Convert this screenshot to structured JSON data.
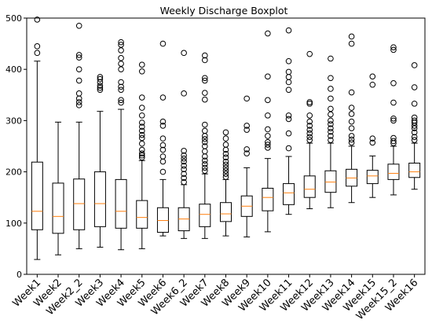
{
  "chart_data": {
    "type": "boxplot",
    "title": "Weekly Discharge Boxplot",
    "xlabel": "",
    "ylabel": "",
    "ylim": [
      0,
      500
    ],
    "yticks": [
      0,
      100,
      200,
      300,
      400,
      500
    ],
    "grid": false,
    "colors": {
      "box": "#000000",
      "median": "#ff7f0e",
      "flier": "#000000"
    },
    "categories": [
      "Week1",
      "Week2",
      "Week2_2",
      "Week3",
      "Week4",
      "Week5",
      "Week6",
      "Week6_2",
      "Week7",
      "Week8",
      "Week9",
      "Week10",
      "Week11",
      "Week12",
      "Week13",
      "Week14",
      "Week15",
      "Week15_2",
      "Week16"
    ],
    "boxes": [
      {
        "whislo": 29,
        "q1": 87,
        "med": 123,
        "q3": 219,
        "whishi": 416,
        "fliers": [
          432,
          445,
          497
        ]
      },
      {
        "whislo": 38,
        "q1": 80,
        "med": 113,
        "q3": 178,
        "whishi": 297,
        "fliers": []
      },
      {
        "whislo": 50,
        "q1": 87,
        "med": 138,
        "q3": 186,
        "whishi": 297,
        "fliers": [
          330,
          336,
          343,
          353,
          378,
          400,
          423,
          428,
          485
        ]
      },
      {
        "whislo": 53,
        "q1": 93,
        "med": 138,
        "q3": 200,
        "whishi": 318,
        "fliers": [
          360,
          364,
          368,
          375,
          381,
          385
        ]
      },
      {
        "whislo": 48,
        "q1": 90,
        "med": 123,
        "q3": 185,
        "whishi": 322,
        "fliers": [
          335,
          340,
          360,
          366,
          375,
          400,
          411,
          422,
          437,
          448,
          453
        ]
      },
      {
        "whislo": 50,
        "q1": 90,
        "med": 111,
        "q3": 144,
        "whishi": 222,
        "fliers": [
          228,
          232,
          236,
          243,
          255,
          266,
          272,
          280,
          288,
          296,
          310,
          325,
          345,
          396,
          409
        ]
      },
      {
        "whislo": 75,
        "q1": 82,
        "med": 105,
        "q3": 130,
        "whishi": 185,
        "fliers": [
          200,
          220,
          230,
          243,
          252,
          265,
          290,
          298,
          345,
          450
        ]
      },
      {
        "whislo": 70,
        "q1": 85,
        "med": 108,
        "q3": 130,
        "whishi": 175,
        "fliers": [
          180,
          188,
          196,
          205,
          212,
          220,
          226,
          232,
          241,
          353,
          432
        ]
      },
      {
        "whislo": 70,
        "q1": 93,
        "med": 117,
        "q3": 137,
        "whishi": 196,
        "fliers": [
          202,
          208,
          215,
          222,
          230,
          240,
          250,
          258,
          264,
          270,
          280,
          292,
          341,
          354,
          378,
          383,
          418,
          427
        ]
      },
      {
        "whislo": 75,
        "q1": 103,
        "med": 118,
        "q3": 140,
        "whishi": 185,
        "fliers": [
          190,
          196,
          202,
          208,
          214,
          220,
          228,
          235,
          243,
          253,
          265,
          277
        ]
      },
      {
        "whislo": 73,
        "q1": 113,
        "med": 133,
        "q3": 153,
        "whishi": 208,
        "fliers": [
          236,
          244,
          282,
          290,
          343
        ]
      },
      {
        "whislo": 83,
        "q1": 124,
        "med": 150,
        "q3": 168,
        "whishi": 226,
        "fliers": [
          247,
          253,
          258,
          270,
          283,
          310,
          340,
          386,
          470
        ]
      },
      {
        "whislo": 117,
        "q1": 136,
        "med": 159,
        "q3": 177,
        "whishi": 230,
        "fliers": [
          246,
          275,
          303,
          310,
          360,
          375,
          385,
          395,
          416,
          476
        ]
      },
      {
        "whislo": 128,
        "q1": 150,
        "med": 166,
        "q3": 192,
        "whishi": 256,
        "fliers": [
          262,
          268,
          275,
          282,
          290,
          298,
          310,
          333,
          336,
          430
        ]
      },
      {
        "whislo": 130,
        "q1": 160,
        "med": 180,
        "q3": 202,
        "whishi": 256,
        "fliers": [
          262,
          270,
          278,
          285,
          293,
          300,
          312,
          323,
          343,
          362,
          383,
          421
        ]
      },
      {
        "whislo": 140,
        "q1": 172,
        "med": 188,
        "q3": 205,
        "whishi": 250,
        "fliers": [
          257,
          263,
          270,
          285,
          298,
          313,
          325,
          355,
          450,
          464
        ]
      },
      {
        "whislo": 150,
        "q1": 177,
        "med": 192,
        "q3": 203,
        "whishi": 231,
        "fliers": [
          257,
          265,
          370,
          386
        ]
      },
      {
        "whislo": 155,
        "q1": 185,
        "med": 197,
        "q3": 215,
        "whishi": 250,
        "fliers": [
          256,
          260,
          266,
          300,
          304,
          335,
          373,
          438,
          443
        ]
      },
      {
        "whislo": 166,
        "q1": 189,
        "med": 200,
        "q3": 217,
        "whishi": 256,
        "fliers": [
          262,
          268,
          277,
          285,
          290,
          296,
          300,
          306,
          333,
          365,
          408
        ]
      }
    ]
  }
}
